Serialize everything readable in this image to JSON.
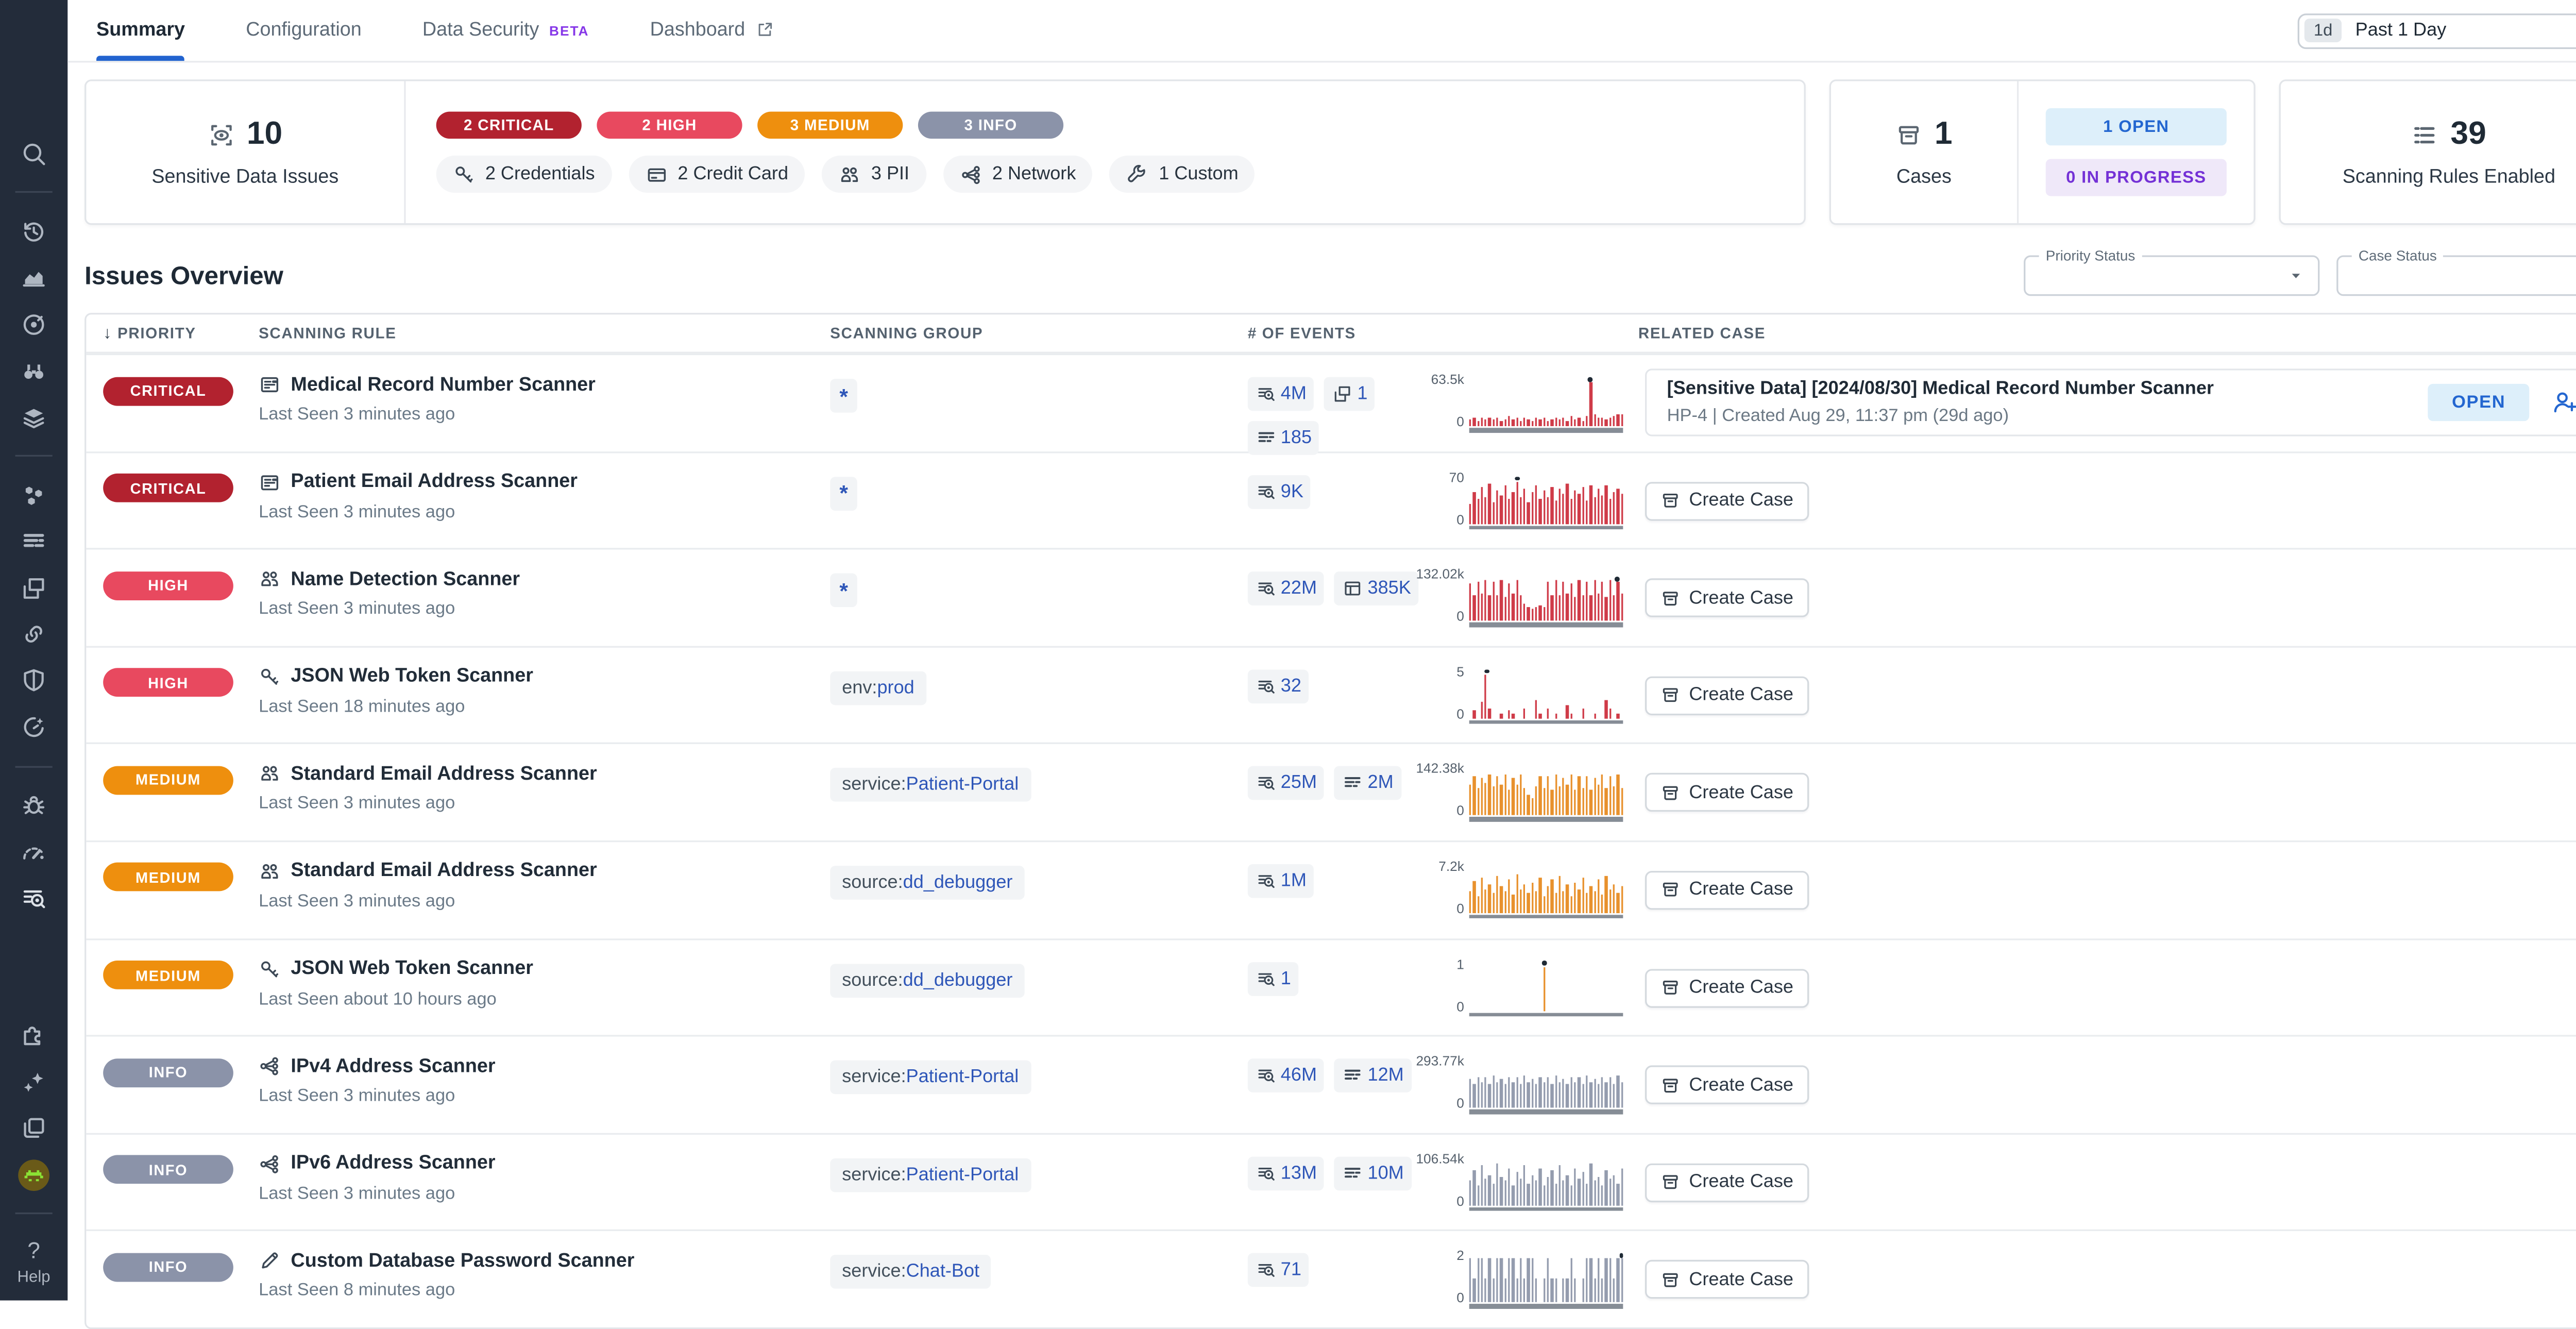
{
  "sidebar": {
    "items": [
      {
        "icon": "search-icon"
      },
      {
        "divider": true
      },
      {
        "icon": "history-icon"
      },
      {
        "icon": "metrics-nav-icon"
      },
      {
        "icon": "apm-target-icon"
      },
      {
        "icon": "watchdog-icon"
      },
      {
        "icon": "dashboards-icon"
      },
      {
        "divider": true
      },
      {
        "icon": "infrastructure-icon"
      },
      {
        "icon": "logs-nav-icon"
      },
      {
        "icon": "rum-icon"
      },
      {
        "icon": "service-map-icon"
      },
      {
        "icon": "security-shield-icon"
      },
      {
        "icon": "ci-gauge-icon"
      },
      {
        "divider": true
      },
      {
        "icon": "bug-icon"
      },
      {
        "icon": "profiling-icon"
      },
      {
        "icon": "sds-icon",
        "active": true
      },
      {
        "spacer": true
      },
      {
        "icon": "integrations-puzzle-icon"
      },
      {
        "icon": "ai-sparkles-icon"
      },
      {
        "icon": "copy-icon"
      },
      {
        "icon": "user-avatar",
        "avatar": true
      },
      {
        "divider": true
      },
      {
        "icon": "help-icon",
        "help": true,
        "label": "Help"
      }
    ]
  },
  "header": {
    "tabs": [
      {
        "label": "Summary",
        "active": true
      },
      {
        "label": "Configuration"
      },
      {
        "label": "Data Security",
        "beta": "BETA"
      },
      {
        "label": "Dashboard",
        "external": true
      }
    ],
    "time_range": {
      "badge": "1d",
      "label": "Past 1 Day"
    }
  },
  "summary": {
    "issues": {
      "value": "10",
      "label": "Sensitive Data Issues",
      "icon": "eye-scan-icon"
    },
    "severities": [
      {
        "label": "2 CRITICAL",
        "color": "#b2222f"
      },
      {
        "label": "2 HIGH",
        "color": "#e8495f"
      },
      {
        "label": "3 MEDIUM",
        "color": "#ee8f0e"
      },
      {
        "label": "3 INFO",
        "color": "#8b93a9"
      }
    ],
    "categories": [
      {
        "icon": "key-icon",
        "label": "2 Credentials"
      },
      {
        "icon": "credit-card-icon",
        "label": "2 Credit Card"
      },
      {
        "icon": "pii-icon",
        "label": "3 PII"
      },
      {
        "icon": "network-icon",
        "label": "2 Network"
      },
      {
        "icon": "wrench-icon",
        "label": "1 Custom"
      }
    ],
    "cases": {
      "value": "1",
      "label": "Cases",
      "icon": "case-icon",
      "badges": [
        {
          "label": "1 OPEN",
          "color": "#2366d0",
          "bg": "#ddeffa"
        },
        {
          "label": "0 IN PROGRESS",
          "color": "#7431d6",
          "bg": "#efe8f9"
        }
      ]
    },
    "rules": {
      "value": "39",
      "label": "Scanning Rules Enabled",
      "icon": "rules-list-icon"
    }
  },
  "issues_overview": {
    "title": "Issues Overview",
    "filters": [
      {
        "label": "Priority Status"
      },
      {
        "label": "Case Status"
      }
    ],
    "columns": [
      {
        "label": "PRIORITY",
        "sorted": true
      },
      {
        "label": "SCANNING RULE"
      },
      {
        "label": "SCANNING GROUP"
      },
      {
        "label": "# OF EVENTS"
      },
      {
        "label": "RELATED CASE"
      }
    ],
    "rows": [
      {
        "priority": "CRITICAL",
        "priority_color": "#b2222f",
        "rule_icon": "record-card-icon",
        "rule_name": "Medical Record Number Scanner",
        "last_seen": "Last Seen 3 minutes ago",
        "group": {
          "prefix": "",
          "value": "*"
        },
        "events": [
          {
            "icon": "logs-icon",
            "count": "4M"
          },
          {
            "icon": "rum-windows-icon",
            "count": "1"
          },
          {
            "icon": "metrics-lines-icon",
            "count": "185"
          }
        ],
        "events_stacked": true,
        "chart": {
          "type": "bar",
          "max_label": "63.5k",
          "zero_label": "0",
          "color": "#cf3b48",
          "dot_index": 31,
          "bars": [
            16,
            20,
            13,
            18,
            14,
            21,
            15,
            19,
            12,
            17,
            22,
            14,
            18,
            13,
            20,
            16,
            12,
            19,
            15,
            21,
            13,
            17,
            20,
            14,
            18,
            12,
            22,
            16,
            19,
            13,
            24,
            100,
            26,
            18,
            21,
            15,
            19,
            23,
            27,
            27
          ]
        },
        "case": {
          "type": "existing",
          "title": "[Sensitive Data] [2024/08/30] Medical Record Number Scanner",
          "meta": "HP-4 | Created Aug 29, 11:37 pm (29d ago)",
          "status": "OPEN"
        }
      },
      {
        "priority": "CRITICAL",
        "priority_color": "#b2222f",
        "rule_icon": "record-card-icon",
        "rule_name": "Patient Email Address Scanner",
        "last_seen": "Last Seen 3 minutes ago",
        "group": {
          "prefix": "",
          "value": "*"
        },
        "events": [
          {
            "icon": "logs-icon",
            "count": "9K"
          }
        ],
        "chart": {
          "type": "bar",
          "max_label": "70",
          "zero_label": "0",
          "color": "#cf3b48",
          "dot_index": 12,
          "bars": [
            45,
            72,
            55,
            83,
            60,
            90,
            50,
            76,
            65,
            88,
            55,
            70,
            95,
            62,
            80,
            50,
            73,
            88,
            58,
            76,
            62,
            84,
            54,
            78,
            66,
            90,
            56,
            74,
            68,
            82,
            52,
            86,
            60,
            78,
            64,
            88,
            58,
            72,
            80,
            66
          ]
        },
        "case": {
          "type": "create",
          "button_label": "Create Case"
        }
      },
      {
        "priority": "HIGH",
        "priority_color": "#e8495f",
        "rule_icon": "pii-icon",
        "rule_name": "Name Detection Scanner",
        "last_seen": "Last Seen 3 minutes ago",
        "group": {
          "prefix": "",
          "value": "*"
        },
        "events": [
          {
            "icon": "logs-icon",
            "count": "22M"
          },
          {
            "icon": "table-icon",
            "count": "385K"
          }
        ],
        "chart": {
          "type": "bar",
          "max_label": "132.02k",
          "zero_label": "0",
          "color": "#cf3b48",
          "dot_index": 38,
          "bars": [
            85,
            58,
            90,
            62,
            95,
            57,
            88,
            60,
            92,
            56,
            86,
            61,
            94,
            58,
            38,
            30,
            26,
            30,
            34,
            30,
            88,
            60,
            92,
            58,
            90,
            62,
            86,
            56,
            94,
            60,
            88,
            58,
            92,
            62,
            90,
            56,
            94,
            60,
            88,
            64
          ]
        },
        "case": {
          "type": "create",
          "button_label": "Create Case"
        }
      },
      {
        "priority": "HIGH",
        "priority_color": "#e8495f",
        "rule_icon": "key-icon",
        "rule_name": "JSON Web Token Scanner",
        "last_seen": "Last Seen 18 minutes ago",
        "group": {
          "prefix": "env:",
          "value": "prod"
        },
        "events": [
          {
            "icon": "logs-icon",
            "count": "32"
          }
        ],
        "chart": {
          "type": "bar",
          "max_label": "5",
          "zero_label": "0",
          "color": "#cf3b48",
          "dot_index": 4,
          "bars": [
            0,
            18,
            0,
            38,
            100,
            22,
            0,
            0,
            12,
            0,
            20,
            10,
            0,
            0,
            22,
            0,
            0,
            40,
            12,
            0,
            22,
            0,
            12,
            0,
            0,
            30,
            12,
            0,
            0,
            22,
            0,
            0,
            12,
            0,
            0,
            42,
            22,
            0,
            12,
            0
          ]
        },
        "case": {
          "type": "create",
          "button_label": "Create Case"
        }
      },
      {
        "priority": "MEDIUM",
        "priority_color": "#ee8f0e",
        "rule_icon": "pii-icon",
        "rule_name": "Standard Email Address Scanner",
        "last_seen": "Last Seen 3 minutes ago",
        "group": {
          "prefix": "service:",
          "value": "Patient-Portal"
        },
        "events": [
          {
            "icon": "logs-icon",
            "count": "25M"
          },
          {
            "icon": "metrics-lines-icon",
            "count": "2M"
          }
        ],
        "chart": {
          "type": "bar",
          "max_label": "142.38k",
          "zero_label": "0",
          "color": "#e8912d",
          "dot_index": null,
          "bars": [
            70,
            90,
            62,
            85,
            75,
            95,
            65,
            88,
            72,
            92,
            58,
            86,
            70,
            94,
            62,
            46,
            40,
            68,
            90,
            64,
            88,
            58,
            92,
            66,
            86,
            72,
            94,
            60,
            88,
            64,
            90,
            58,
            86,
            70,
            92,
            62,
            88,
            66,
            94,
            62
          ]
        },
        "case": {
          "type": "create",
          "button_label": "Create Case"
        }
      },
      {
        "priority": "MEDIUM",
        "priority_color": "#ee8f0e",
        "rule_icon": "pii-icon",
        "rule_name": "Standard Email Address Scanner",
        "last_seen": "Last Seen 3 minutes ago",
        "group": {
          "prefix": "source:",
          "value": "dd_debugger"
        },
        "events": [
          {
            "icon": "logs-icon",
            "count": "1M"
          }
        ],
        "chart": {
          "type": "bar",
          "max_label": "7.2k",
          "zero_label": "0",
          "color": "#e8912d",
          "dot_index": null,
          "bars": [
            50,
            72,
            40,
            80,
            55,
            66,
            46,
            85,
            60,
            50,
            75,
            42,
            90,
            55,
            65,
            45,
            70,
            50,
            80,
            40,
            62,
            75,
            46,
            85,
            50,
            66,
            40,
            70,
            55,
            80,
            45,
            62,
            50,
            75,
            42,
            85,
            55,
            66,
            46,
            60
          ]
        },
        "case": {
          "type": "create",
          "button_label": "Create Case"
        }
      },
      {
        "priority": "MEDIUM",
        "priority_color": "#ee8f0e",
        "rule_icon": "key-icon",
        "rule_name": "JSON Web Token Scanner",
        "last_seen": "Last Seen about 10 hours ago",
        "group": {
          "prefix": "source:",
          "value": "dd_debugger"
        },
        "events": [
          {
            "icon": "logs-icon",
            "count": "1"
          }
        ],
        "chart": {
          "type": "bar",
          "max_label": "1",
          "zero_label": "0",
          "color": "#e8912d",
          "dot_index": 19,
          "bars": [
            0,
            0,
            0,
            0,
            0,
            0,
            0,
            0,
            0,
            0,
            0,
            0,
            0,
            0,
            0,
            0,
            0,
            0,
            0,
            100,
            0,
            0,
            0,
            0,
            0,
            0,
            0,
            0,
            0,
            0,
            0,
            0,
            0,
            0,
            0,
            0,
            0,
            0,
            0,
            0
          ]
        },
        "case": {
          "type": "create",
          "button_label": "Create Case"
        }
      },
      {
        "priority": "INFO",
        "priority_color": "#8b93a9",
        "rule_icon": "network-icon",
        "rule_name": "IPv4 Address Scanner",
        "last_seen": "Last Seen 3 minutes ago",
        "group": {
          "prefix": "service:",
          "value": "Patient-Portal"
        },
        "events": [
          {
            "icon": "logs-icon",
            "count": "46M"
          },
          {
            "icon": "metrics-lines-icon",
            "count": "12M"
          }
        ],
        "chart": {
          "type": "bar",
          "max_label": "293.77k",
          "zero_label": "0",
          "color": "#949cae",
          "dot_index": null,
          "bars": [
            66,
            56,
            70,
            58,
            68,
            56,
            72,
            60,
            66,
            54,
            70,
            58,
            68,
            56,
            72,
            60,
            66,
            54,
            70,
            58,
            68,
            56,
            72,
            60,
            66,
            54,
            70,
            58,
            68,
            56,
            72,
            60,
            66,
            54,
            70,
            58,
            68,
            56,
            72,
            60
          ]
        },
        "case": {
          "type": "create",
          "button_label": "Create Case"
        }
      },
      {
        "priority": "INFO",
        "priority_color": "#8b93a9",
        "rule_icon": "network-icon",
        "rule_name": "IPv6 Address Scanner",
        "last_seen": "Last Seen 3 minutes ago",
        "group": {
          "prefix": "service:",
          "value": "Patient-Portal"
        },
        "events": [
          {
            "icon": "logs-icon",
            "count": "13M"
          },
          {
            "icon": "metrics-lines-icon",
            "count": "10M"
          }
        ],
        "chart": {
          "type": "bar",
          "max_label": "106.54k",
          "zero_label": "0",
          "color": "#949cae",
          "dot_index": null,
          "bars": [
            55,
            80,
            46,
            90,
            60,
            70,
            50,
            95,
            65,
            55,
            85,
            46,
            75,
            60,
            90,
            50,
            70,
            55,
            85,
            46,
            65,
            80,
            50,
            90,
            55,
            70,
            46,
            85,
            60,
            75,
            50,
            95,
            55,
            65,
            46,
            80,
            60,
            70,
            50,
            85
          ]
        },
        "case": {
          "type": "create",
          "button_label": "Create Case"
        }
      },
      {
        "priority": "INFO",
        "priority_color": "#8b93a9",
        "rule_icon": "pencil-icon",
        "rule_name": "Custom Database Password Scanner",
        "last_seen": "Last Seen 8 minutes ago",
        "group": {
          "prefix": "service:",
          "value": "Chat-Bot"
        },
        "events": [
          {
            "icon": "logs-icon",
            "count": "71"
          }
        ],
        "chart": {
          "type": "bar",
          "max_label": "2",
          "zero_label": "0",
          "color": "#949cae",
          "dot_index": 39,
          "bars": [
            100,
            55,
            100,
            100,
            55,
            100,
            55,
            100,
            100,
            55,
            100,
            100,
            55,
            100,
            55,
            100,
            100,
            55,
            0,
            55,
            100,
            55,
            55,
            0,
            55,
            55,
            100,
            55,
            0,
            55,
            100,
            100,
            55,
            100,
            55,
            100,
            100,
            55,
            100,
            100
          ]
        },
        "case": {
          "type": "create",
          "button_label": "Create Case"
        }
      }
    ]
  }
}
